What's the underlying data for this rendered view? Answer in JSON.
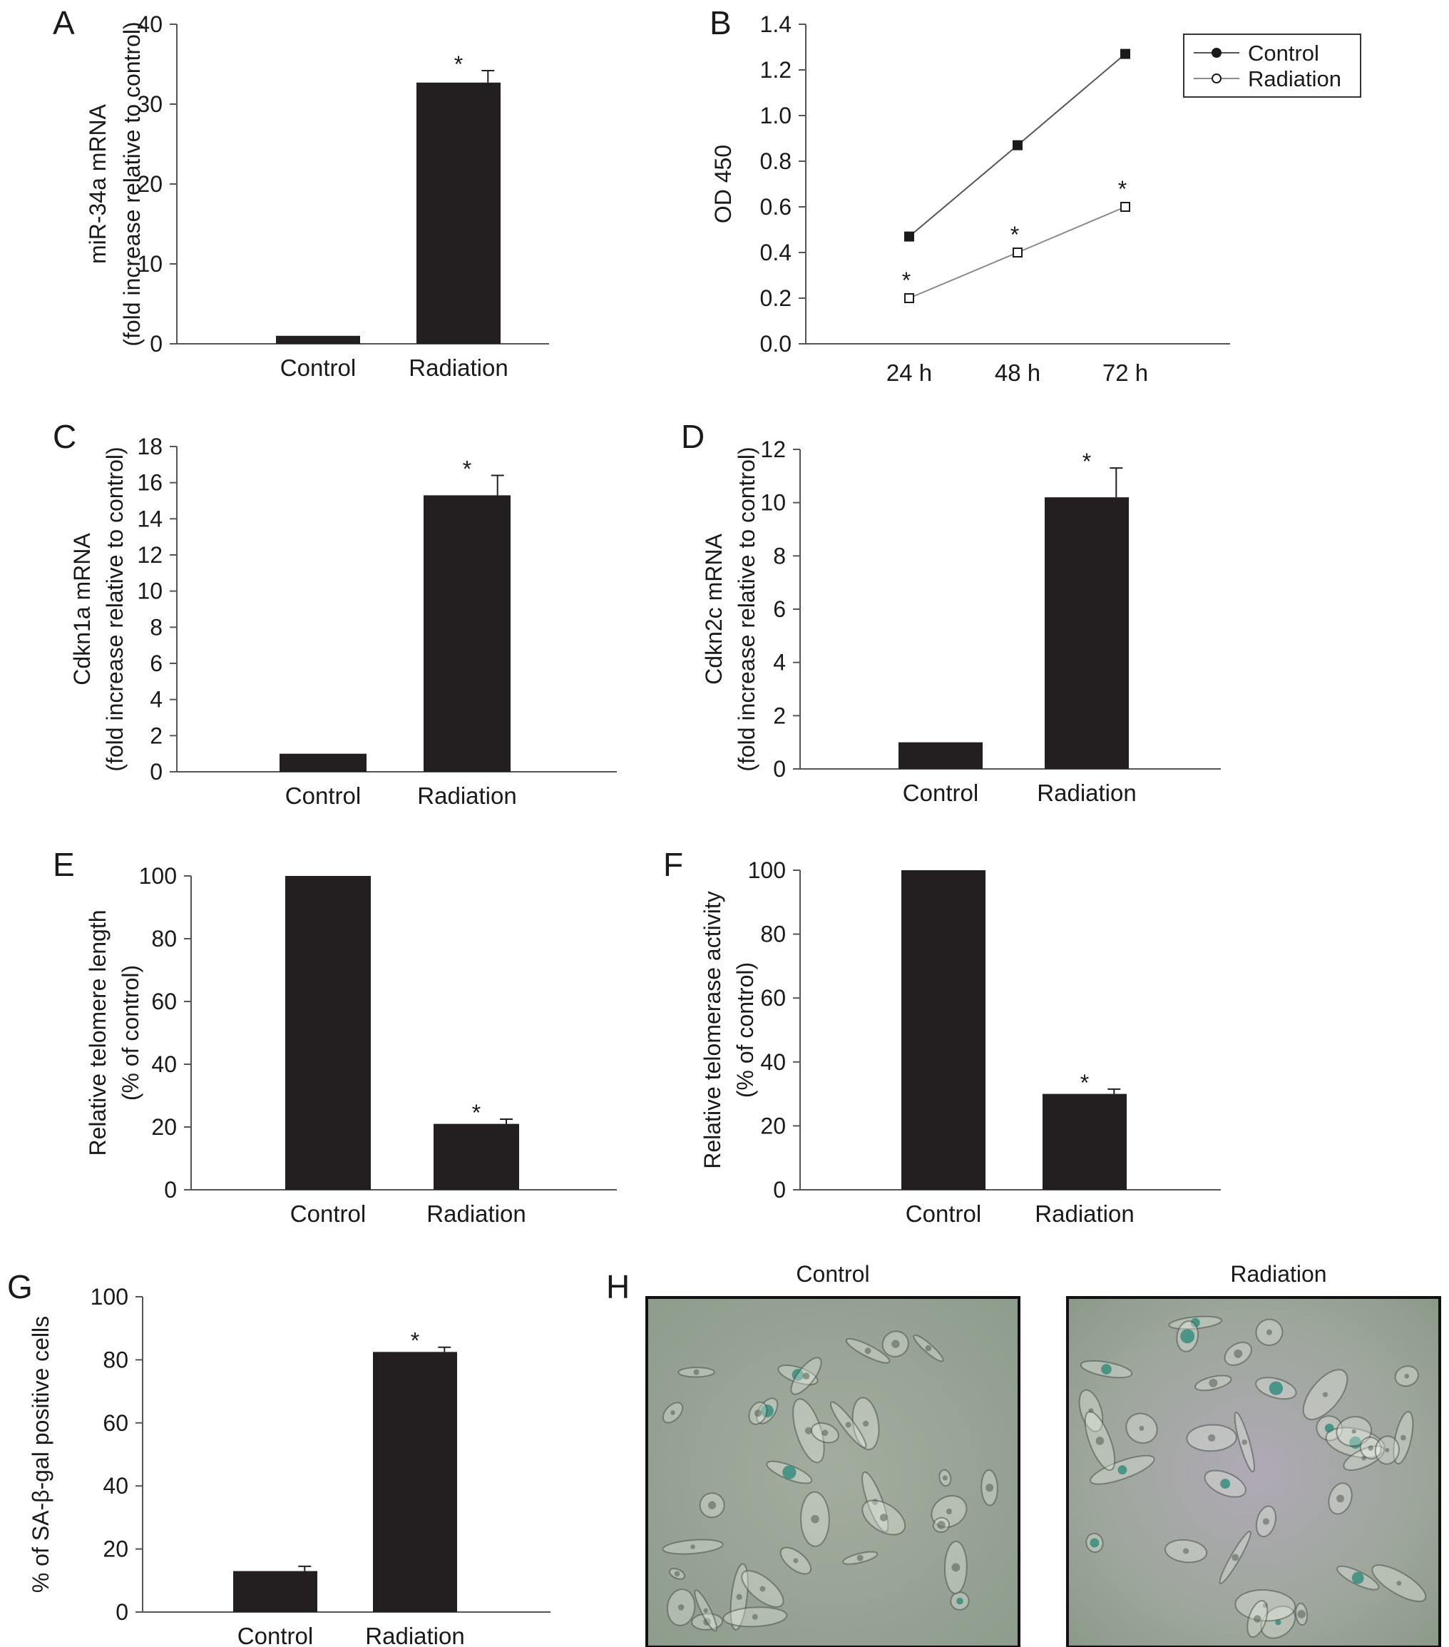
{
  "figure": {
    "panels": [
      {
        "letter": "A",
        "chart_index": 0
      },
      {
        "letter": "B",
        "chart_index": 1
      },
      {
        "letter": "C",
        "chart_index": 2
      },
      {
        "letter": "D",
        "chart_index": 3
      },
      {
        "letter": "E",
        "chart_index": 4
      },
      {
        "letter": "F",
        "chart_index": 5
      },
      {
        "letter": "G",
        "chart_index": 6
      },
      {
        "letter": "H",
        "chart_index": null
      }
    ],
    "micrographs": {
      "left_title": "Control",
      "right_title": "Radiation",
      "tint_color": "#9aa89b",
      "stain_color": "#2e8a7a"
    }
  },
  "chart_data": [
    {
      "type": "bar",
      "panel": "A",
      "categories": [
        "Control",
        "Radiation"
      ],
      "values": [
        1,
        32.7
      ],
      "errors": [
        0,
        1.5
      ],
      "significance": [
        "",
        "*"
      ],
      "ylabel": [
        "miR-34a mRNA",
        "(fold increase relative to control)"
      ],
      "ylim": [
        0,
        40
      ],
      "yticks": [
        0,
        10,
        20,
        30,
        40
      ],
      "bar_color": "#231f20"
    },
    {
      "type": "line",
      "panel": "B",
      "categories": [
        "24 h",
        "48 h",
        "72 h"
      ],
      "series": [
        {
          "name": "Control",
          "values": [
            0.47,
            0.87,
            1.27
          ],
          "marker": "filled",
          "significance": [
            "",
            "",
            ""
          ]
        },
        {
          "name": "Radiation",
          "values": [
            0.2,
            0.4,
            0.6
          ],
          "marker": "open",
          "significance": [
            "*",
            "*",
            "*"
          ]
        }
      ],
      "ylabel": "OD 450",
      "ylim": [
        0,
        1.4
      ],
      "yticks": [
        "0.0",
        "0.2",
        "0.4",
        "0.6",
        "0.8",
        "1.0",
        "1.2",
        "1.4"
      ],
      "legend": "top-right",
      "line_color": "#555555"
    },
    {
      "type": "bar",
      "panel": "C",
      "categories": [
        "Control",
        "Radiation"
      ],
      "values": [
        1,
        15.3
      ],
      "errors": [
        0,
        1.1
      ],
      "significance": [
        "",
        "*"
      ],
      "ylabel": [
        "Cdkn1a mRNA",
        "(fold increase relative to control)"
      ],
      "ylim": [
        0,
        18
      ],
      "yticks": [
        0,
        2,
        4,
        6,
        8,
        10,
        12,
        14,
        16,
        18
      ],
      "bar_color": "#231f20"
    },
    {
      "type": "bar",
      "panel": "D",
      "categories": [
        "Control",
        "Radiation"
      ],
      "values": [
        1,
        10.2
      ],
      "errors": [
        0,
        1.1
      ],
      "significance": [
        "",
        "*"
      ],
      "ylabel": [
        "Cdkn2c mRNA",
        "(fold increase relative to control)"
      ],
      "ylim": [
        0,
        12
      ],
      "yticks": [
        0,
        2,
        4,
        6,
        8,
        10,
        12
      ],
      "bar_color": "#231f20"
    },
    {
      "type": "bar",
      "panel": "E",
      "categories": [
        "Control",
        "Radiation"
      ],
      "values": [
        100,
        21
      ],
      "errors": [
        0,
        1.5
      ],
      "significance": [
        "",
        "*"
      ],
      "ylabel": [
        "Relative telomere length",
        "(% of control)"
      ],
      "ylim": [
        0,
        100
      ],
      "yticks": [
        0,
        20,
        40,
        60,
        80,
        100
      ],
      "bar_color": "#231f20"
    },
    {
      "type": "bar",
      "panel": "F",
      "categories": [
        "Control",
        "Radiation"
      ],
      "values": [
        100,
        30
      ],
      "errors": [
        0,
        1.5
      ],
      "significance": [
        "",
        "*"
      ],
      "ylabel": [
        "Relative telomerase activity",
        "(% of control)"
      ],
      "ylim": [
        0,
        100
      ],
      "yticks": [
        0,
        20,
        40,
        60,
        80,
        100
      ],
      "bar_color": "#231f20"
    },
    {
      "type": "bar",
      "panel": "G",
      "categories": [
        "Control",
        "Radiation"
      ],
      "values": [
        13,
        82.5
      ],
      "errors": [
        1.5,
        1.5
      ],
      "significance": [
        "",
        "*"
      ],
      "ylabel": [
        "% of SA-β-gal positive cells"
      ],
      "ylim": [
        0,
        100
      ],
      "yticks": [
        0,
        20,
        40,
        60,
        80,
        100
      ],
      "bar_color": "#231f20"
    }
  ]
}
